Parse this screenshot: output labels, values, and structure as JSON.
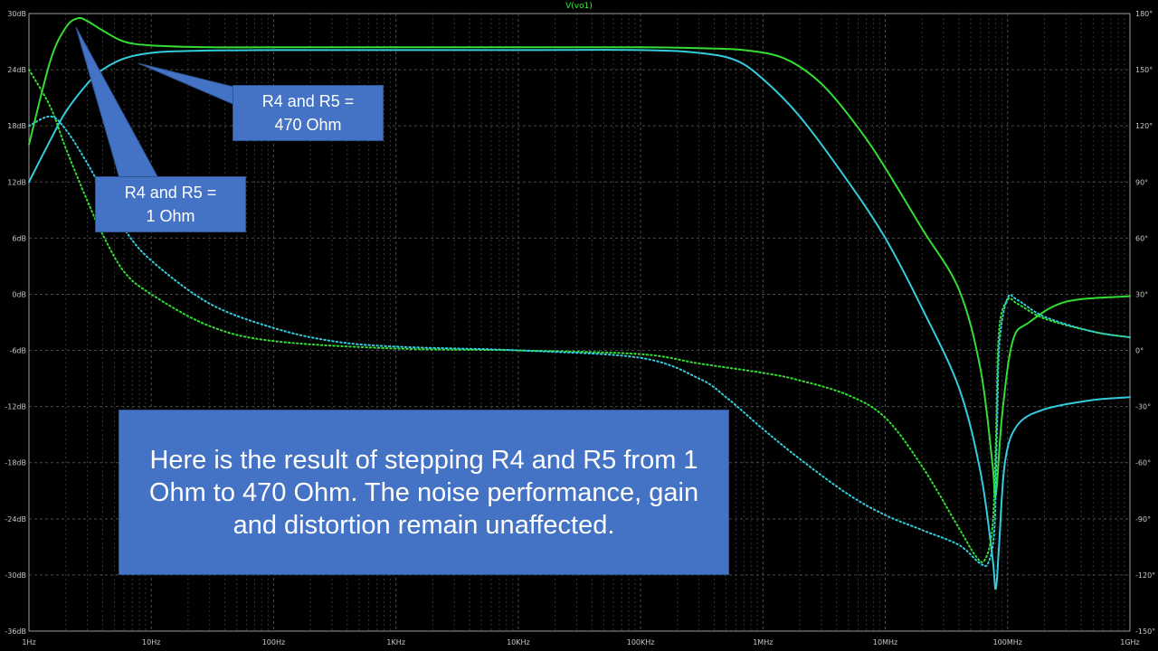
{
  "chart_data": {
    "type": "line",
    "title": "V(vo1)",
    "x_scale": "log",
    "xlim_hz": [
      1,
      1000000000
    ],
    "x_ticks": [
      {
        "v": 1,
        "label": "1Hz"
      },
      {
        "v": 10,
        "label": "10Hz"
      },
      {
        "v": 100,
        "label": "100Hz"
      },
      {
        "v": 1000,
        "label": "1KHz"
      },
      {
        "v": 10000,
        "label": "10KHz"
      },
      {
        "v": 100000,
        "label": "100KHz"
      },
      {
        "v": 1000000,
        "label": "1MHz"
      },
      {
        "v": 10000000,
        "label": "10MHz"
      },
      {
        "v": 100000000,
        "label": "100MHz"
      },
      {
        "v": 1000000000,
        "label": "1GHz"
      }
    ],
    "ylim_left_db": [
      -36,
      30
    ],
    "y_ticks_left": [
      {
        "v": 30,
        "label": "30dB"
      },
      {
        "v": 24,
        "label": "24dB"
      },
      {
        "v": 18,
        "label": "18dB"
      },
      {
        "v": 12,
        "label": "12dB"
      },
      {
        "v": 6,
        "label": "6dB"
      },
      {
        "v": 0,
        "label": "0dB"
      },
      {
        "v": -6,
        "label": "-6dB"
      },
      {
        "v": -12,
        "label": "-12dB"
      },
      {
        "v": -18,
        "label": "-18dB"
      },
      {
        "v": -24,
        "label": "-24dB"
      },
      {
        "v": -30,
        "label": "-30dB"
      },
      {
        "v": -36,
        "label": "-36dB"
      }
    ],
    "ylim_right_deg": [
      -150,
      180
    ],
    "y_ticks_right": [
      {
        "v": 180,
        "label": "180°"
      },
      {
        "v": 150,
        "label": "150°"
      },
      {
        "v": 120,
        "label": "120°"
      },
      {
        "v": 90,
        "label": "90°"
      },
      {
        "v": 60,
        "label": "60°"
      },
      {
        "v": 30,
        "label": "30°"
      },
      {
        "v": 0,
        "label": "0°"
      },
      {
        "v": -30,
        "label": "-30°"
      },
      {
        "v": -60,
        "label": "-60°"
      },
      {
        "v": -90,
        "label": "-90°"
      },
      {
        "v": -120,
        "label": "-120°"
      },
      {
        "v": -150,
        "label": "-150°"
      }
    ],
    "grid": true,
    "series": [
      {
        "color": "#33dd33",
        "style": "solid",
        "axis": "left",
        "x": [
          1,
          1.5,
          2,
          2.5,
          3,
          4,
          6,
          10,
          30,
          100,
          1000,
          10000,
          100000,
          300000,
          700000,
          1500000,
          3000000,
          6000000,
          10000000,
          20000000,
          40000000,
          60000000,
          75000000,
          80000000,
          90000000,
          110000000,
          150000000,
          300000000,
          1000000000
        ],
        "y": [
          16,
          25,
          28.5,
          29.5,
          29.2,
          28.2,
          27,
          26.6,
          26.4,
          26.4,
          26.4,
          26.4,
          26.4,
          26.3,
          26.1,
          25.2,
          22.5,
          17.8,
          13.5,
          7,
          0.5,
          -8,
          -18,
          -21.5,
          -13,
          -5,
          -3,
          -0.8,
          -0.2
        ]
      },
      {
        "color": "#33ccdd",
        "style": "solid",
        "axis": "left",
        "x": [
          1,
          1.5,
          2,
          3,
          4,
          6,
          10,
          20,
          100,
          1000,
          10000,
          100000,
          300000,
          600000,
          1000000,
          2000000,
          5000000,
          10000000,
          20000000,
          40000000,
          60000000,
          75000000,
          80000000,
          85000000,
          95000000,
          120000000,
          200000000,
          500000000,
          1000000000
        ],
        "y": [
          12,
          16.5,
          19.5,
          22.5,
          24,
          25.2,
          25.8,
          26,
          26.1,
          26.1,
          26.1,
          26.1,
          25.8,
          25,
          23,
          19,
          12,
          6,
          -1.5,
          -10,
          -19,
          -28,
          -31.5,
          -27,
          -18,
          -14,
          -12.3,
          -11.3,
          -11
        ]
      },
      {
        "color": "#33dd33",
        "style": "dotted",
        "axis": "right",
        "x": [
          1,
          1.5,
          2,
          3,
          4,
          6,
          10,
          30,
          100,
          1000,
          10000,
          100000,
          300000,
          1000000,
          2000000,
          5000000,
          10000000,
          20000000,
          40000000,
          55000000,
          65000000,
          75000000,
          80000000,
          85000000,
          100000000,
          120000000,
          200000000,
          500000000,
          1000000000
        ],
        "y": [
          150,
          130,
          108,
          80,
          62,
          42,
          30,
          13,
          5,
          1,
          0,
          -2,
          -7,
          -12,
          -16,
          -24,
          -36,
          -62,
          -95,
          -110,
          -112,
          -95,
          -50,
          10,
          27,
          25,
          17,
          10,
          7
        ]
      },
      {
        "color": "#33ccdd",
        "style": "dotted",
        "axis": "right",
        "x": [
          1,
          1.5,
          2,
          3,
          4,
          6,
          10,
          30,
          100,
          300,
          1000,
          10000,
          100000,
          300000,
          500000,
          1000000,
          2000000,
          5000000,
          10000000,
          20000000,
          40000000,
          60000000,
          70000000,
          78000000,
          82000000,
          86000000,
          100000000,
          120000000,
          200000000,
          500000000,
          1000000000
        ],
        "y": [
          120,
          125,
          118,
          100,
          85,
          65,
          48,
          25,
          12,
          5,
          2,
          0,
          -4,
          -15,
          -25,
          -42,
          -58,
          -77,
          -88,
          -96,
          -104,
          -114,
          -113,
          -95,
          -40,
          5,
          28,
          27,
          18,
          10,
          7
        ]
      }
    ]
  },
  "annotations": {
    "callout_470": "R4 and R5  =\n470 Ohm",
    "callout_1": "R4 and R5  =\n1  Ohm",
    "caption": "Here is the result of stepping R4 and R5 from 1 Ohm to 470 Ohm. The noise performance, gain and distortion remain unaffected."
  },
  "colors": {
    "background": "#000000",
    "grid": "#4a4a4a",
    "axis": "#9a9a9a",
    "callout_fill": "#4472c4",
    "title": "#33ee33"
  }
}
